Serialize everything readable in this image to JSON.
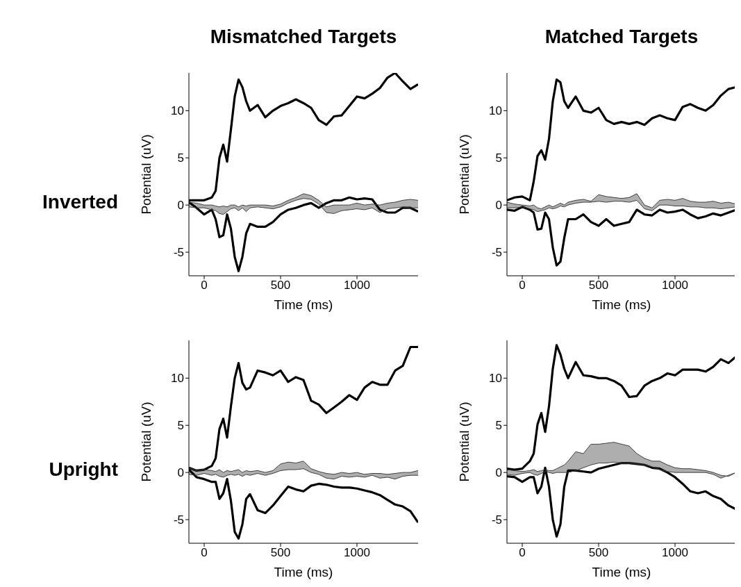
{
  "chart_data": [
    {
      "type": "line",
      "title": "Mismatched Targets",
      "annotations": [
        "Inverted"
      ],
      "xlabel": "Time (ms)",
      "ylabel": "Potential (uV)",
      "xlim": [
        -100,
        1400
      ],
      "xticks": [
        0,
        500,
        1000
      ],
      "ylim": [
        -7.5,
        14
      ],
      "yticks": [
        -5,
        0,
        5,
        10
      ],
      "marker": "none",
      "x": [
        -100,
        -50,
        0,
        50,
        75,
        100,
        125,
        150,
        175,
        200,
        225,
        250,
        275,
        300,
        350,
        400,
        450,
        500,
        550,
        600,
        650,
        700,
        750,
        800,
        850,
        900,
        950,
        1000,
        1050,
        1100,
        1150,
        1200,
        1250,
        1300,
        1350,
        1400
      ],
      "series": [
        {
          "color": "#000000",
          "values": [
            0.5,
            0.5,
            0.5,
            0.8,
            1.5,
            5,
            6.4,
            4.6,
            8,
            11.5,
            13.3,
            12.5,
            11,
            10,
            10.6,
            9.3,
            10,
            10.5,
            10.8,
            11.2,
            10.8,
            10.3,
            9,
            8.5,
            9.4,
            9.5,
            10.5,
            11.5,
            11.3,
            11.8,
            12.4,
            13.5,
            14,
            13.1,
            12.3,
            12.8
          ]
        },
        {
          "color": "#000000",
          "values": [
            0.3,
            -0.3,
            -1,
            -0.5,
            -1.5,
            -3.4,
            -3.2,
            -1,
            -2.5,
            -5.5,
            -7,
            -5.5,
            -3,
            -2,
            -2.3,
            -2.3,
            -1.8,
            -1,
            -0.5,
            -0.3,
            0,
            0.2,
            -0.3,
            0.2,
            0.5,
            0.5,
            0.8,
            0.6,
            0.7,
            0.6,
            -0.5,
            -0.8,
            -0.8,
            -0.3,
            -0.3,
            -0.7
          ]
        },
        {
          "color": "#404040",
          "values": [
            0.3,
            0.2,
            0,
            0,
            -0.1,
            -0.2,
            -0.1,
            -0.2,
            0,
            0,
            -0.2,
            0,
            -0.1,
            0,
            0,
            0,
            -0.1,
            0.1,
            0.5,
            0.8,
            1.2,
            1,
            0.5,
            -0.2,
            0,
            0,
            0,
            0.2,
            0,
            0.1,
            0,
            0.2,
            0.3,
            0.5,
            0.6,
            0.5
          ],
          "upper": [
            0.3,
            0.2,
            0,
            0,
            -0.1,
            -0.2,
            -0.1,
            -0.2,
            0,
            0,
            -0.2,
            0,
            -0.1,
            0,
            0,
            0,
            -0.1,
            0.1,
            0.5,
            0.8,
            1.2,
            1,
            0.5,
            -0.2,
            0,
            0,
            0,
            0.2,
            0,
            0.1,
            0,
            0.2,
            0.3,
            0.5,
            0.6,
            0.5
          ],
          "lower": [
            -0.2,
            -0.3,
            -0.3,
            -0.5,
            -0.6,
            -0.9,
            -1,
            -0.7,
            -0.4,
            -0.3,
            -0.6,
            -0.3,
            -0.7,
            -0.3,
            -0.2,
            -0.3,
            -0.4,
            -0.2,
            0.2,
            0.5,
            0.7,
            0.6,
            0.1,
            -0.8,
            -0.9,
            -0.6,
            -0.5,
            -0.4,
            -0.5,
            -0.3,
            -0.8,
            -0.4,
            -0.3,
            -0.2,
            -0.3,
            -0.3
          ]
        },
        {
          "color": "#404040",
          "values": [
            -0.2,
            -0.3,
            -0.3,
            -0.5,
            -0.6,
            -0.9,
            -1,
            -0.7,
            -0.4,
            -0.3,
            -0.6,
            -0.3,
            -0.7,
            -0.3,
            -0.2,
            -0.3,
            -0.4,
            -0.2,
            0.2,
            0.5,
            0.7,
            0.6,
            0.1,
            -0.8,
            -0.9,
            -0.6,
            -0.5,
            -0.4,
            -0.5,
            -0.3,
            -0.8,
            -0.4,
            -0.3,
            -0.2,
            -0.3,
            -0.3
          ]
        }
      ]
    },
    {
      "type": "line",
      "title": "Matched Targets",
      "xlabel": "Time (ms)",
      "ylabel": "Potential (uV)",
      "xlim": [
        -100,
        1400
      ],
      "xticks": [
        0,
        500,
        1000
      ],
      "ylim": [
        -7.5,
        14
      ],
      "yticks": [
        -5,
        0,
        5,
        10
      ],
      "marker": "none",
      "x": [
        -100,
        -50,
        0,
        50,
        75,
        100,
        125,
        150,
        175,
        200,
        225,
        250,
        275,
        300,
        350,
        400,
        450,
        500,
        550,
        600,
        650,
        700,
        750,
        800,
        850,
        900,
        950,
        1000,
        1050,
        1100,
        1150,
        1200,
        1250,
        1300,
        1350,
        1400
      ],
      "series": [
        {
          "color": "#000000",
          "values": [
            0.5,
            0.8,
            0.9,
            0.5,
            2.5,
            5.2,
            5.8,
            4.8,
            7,
            11,
            13.3,
            13,
            11,
            10.3,
            11.5,
            10,
            9.8,
            10.3,
            9,
            8.6,
            8.8,
            8.6,
            8.8,
            8.5,
            9.2,
            9.5,
            9.2,
            9,
            10.4,
            10.7,
            10.3,
            10,
            10.6,
            11.6,
            12.3,
            12.5
          ]
        },
        {
          "color": "#000000",
          "values": [
            -0.5,
            -0.6,
            -0.2,
            -0.5,
            -0.8,
            -2.6,
            -2.5,
            -0.8,
            -1.5,
            -4.5,
            -6.4,
            -6,
            -3.5,
            -1.5,
            -1.5,
            -1,
            -1.8,
            -2.2,
            -1.5,
            -2.2,
            -2,
            -1.8,
            -0.5,
            -1,
            -1.1,
            -0.5,
            -0.8,
            -0.7,
            -0.5,
            -1,
            -1.4,
            -1.2,
            -0.9,
            -1.1,
            -0.8,
            -0.5
          ]
        },
        {
          "color": "#404040",
          "values": [
            0.3,
            0.1,
            0,
            -0.1,
            0,
            -0.3,
            -0.4,
            -0.2,
            0,
            -0.2,
            0,
            0.2,
            0,
            0.3,
            0.5,
            0.6,
            0.4,
            1.1,
            0.9,
            0.8,
            0.7,
            0.8,
            1.2,
            0,
            -0.3,
            0.5,
            0.6,
            0.5,
            0.7,
            0.4,
            0.3,
            0.3,
            0.4,
            0.2,
            0.3,
            0.1
          ],
          "upper": [
            0.3,
            0.1,
            0,
            -0.1,
            0,
            -0.3,
            -0.4,
            -0.2,
            0,
            -0.2,
            0,
            0.2,
            0,
            0.3,
            0.5,
            0.6,
            0.4,
            1.1,
            0.9,
            0.8,
            0.7,
            0.8,
            1.2,
            0,
            -0.3,
            0.5,
            0.6,
            0.5,
            0.7,
            0.4,
            0.3,
            0.3,
            0.4,
            0.2,
            0.3,
            0.1
          ],
          "lower": [
            -0.3,
            -0.3,
            -0.2,
            -0.4,
            -0.5,
            -0.7,
            -0.6,
            -0.5,
            -0.3,
            -0.4,
            -0.3,
            -0.1,
            -0.2,
            0,
            0.2,
            0.3,
            0.3,
            0.4,
            0.3,
            0.4,
            0.4,
            0.3,
            0.5,
            -0.4,
            -0.6,
            0,
            0,
            -0.1,
            -0.1,
            -0.2,
            -0.2,
            -0.3,
            -0.3,
            -0.4,
            -0.3,
            -0.2
          ]
        },
        {
          "color": "#404040",
          "values": [
            -0.3,
            -0.3,
            -0.2,
            -0.4,
            -0.5,
            -0.7,
            -0.6,
            -0.5,
            -0.3,
            -0.4,
            -0.3,
            -0.1,
            -0.2,
            0,
            0.2,
            0.3,
            0.3,
            0.4,
            0.3,
            0.4,
            0.4,
            0.3,
            0.5,
            -0.4,
            -0.6,
            0,
            0,
            -0.1,
            -0.1,
            -0.2,
            -0.2,
            -0.3,
            -0.3,
            -0.4,
            -0.3,
            -0.2
          ]
        }
      ]
    },
    {
      "type": "line",
      "annotations": [
        "Upright"
      ],
      "xlabel": "Time (ms)",
      "ylabel": "Potential (uV)",
      "xlim": [
        -100,
        1400
      ],
      "xticks": [
        0,
        500,
        1000
      ],
      "ylim": [
        -7.5,
        14
      ],
      "yticks": [
        -5,
        0,
        5,
        10
      ],
      "marker": "none",
      "x": [
        -100,
        -50,
        0,
        50,
        75,
        100,
        125,
        150,
        175,
        200,
        225,
        250,
        275,
        300,
        350,
        400,
        450,
        500,
        550,
        600,
        650,
        700,
        750,
        800,
        850,
        900,
        950,
        1000,
        1050,
        1100,
        1150,
        1200,
        1250,
        1300,
        1350,
        1400
      ],
      "series": [
        {
          "color": "#000000",
          "values": [
            0.5,
            0.2,
            0.3,
            0.7,
            1.5,
            4.6,
            5.7,
            3.7,
            7,
            10,
            11.6,
            9.5,
            8.8,
            9,
            10.8,
            10.6,
            10.3,
            10.8,
            9.6,
            10.1,
            9.8,
            7.6,
            7.2,
            6.3,
            6.9,
            7.5,
            8.2,
            7.7,
            9,
            9.6,
            9.3,
            9.3,
            10.8,
            11.3,
            13.3,
            13.3
          ]
        },
        {
          "color": "#000000",
          "values": [
            0.3,
            -0.5,
            -0.7,
            -1,
            -1,
            -2.8,
            -2.2,
            -0.7,
            -3,
            -6.3,
            -7,
            -5.5,
            -2.8,
            -2.3,
            -4,
            -4.3,
            -3.5,
            -2.5,
            -1.5,
            -1.8,
            -2,
            -1.4,
            -1.2,
            -1.3,
            -1.5,
            -1.6,
            -1.6,
            -1.7,
            -1.9,
            -2.1,
            -2.4,
            -2.9,
            -3.4,
            -3.6,
            -4.1,
            -5.3
          ]
        },
        {
          "color": "#404040",
          "values": [
            0.5,
            0.2,
            0.3,
            0.2,
            0.1,
            0.3,
            0,
            0.2,
            0.1,
            0.2,
            0.3,
            0,
            0.2,
            0.1,
            0.2,
            0,
            0.2,
            0.9,
            1.1,
            1,
            1.2,
            0.4,
            0.1,
            -0.1,
            -0.2,
            0,
            -0.1,
            0,
            -0.2,
            -0.1,
            -0.1,
            -0.2,
            -0.1,
            0,
            0,
            0.2
          ],
          "upper": [
            0.5,
            0.2,
            0.3,
            0.2,
            0.1,
            0.3,
            0,
            0.2,
            0.1,
            0.2,
            0.3,
            0,
            0.2,
            0.1,
            0.2,
            0,
            0.2,
            0.9,
            1.1,
            1,
            1.2,
            0.4,
            0.1,
            -0.1,
            -0.2,
            0,
            -0.1,
            0,
            -0.2,
            -0.1,
            -0.1,
            -0.2,
            -0.1,
            0,
            0,
            0.2
          ],
          "lower": [
            -0.2,
            -0.3,
            -0.1,
            -0.3,
            -0.2,
            -0.4,
            -0.5,
            -0.3,
            -0.2,
            -0.3,
            -0.2,
            -0.4,
            -0.2,
            -0.3,
            -0.1,
            -0.3,
            -0.1,
            0.2,
            0.3,
            0.3,
            0.4,
            0,
            -0.2,
            -0.6,
            -0.7,
            -0.4,
            -0.5,
            -0.4,
            -0.5,
            -0.3,
            -0.6,
            -0.5,
            -0.7,
            -0.4,
            -0.3,
            -0.3
          ]
        },
        {
          "color": "#404040",
          "values": [
            -0.2,
            -0.3,
            -0.1,
            -0.3,
            -0.2,
            -0.4,
            -0.5,
            -0.3,
            -0.2,
            -0.3,
            -0.2,
            -0.4,
            -0.2,
            -0.3,
            -0.1,
            -0.3,
            -0.1,
            0.2,
            0.3,
            0.3,
            0.4,
            0,
            -0.2,
            -0.6,
            -0.7,
            -0.4,
            -0.5,
            -0.4,
            -0.5,
            -0.3,
            -0.6,
            -0.5,
            -0.7,
            -0.4,
            -0.3,
            -0.3
          ]
        }
      ]
    },
    {
      "type": "line",
      "xlabel": "Time (ms)",
      "ylabel": "Potential (uV)",
      "xlim": [
        -100,
        1400
      ],
      "xticks": [
        0,
        500,
        1000
      ],
      "ylim": [
        -7.5,
        14
      ],
      "yticks": [
        -5,
        0,
        5,
        10
      ],
      "marker": "none",
      "x": [
        -100,
        -50,
        0,
        50,
        75,
        100,
        125,
        150,
        175,
        200,
        225,
        250,
        275,
        300,
        350,
        400,
        450,
        500,
        550,
        600,
        650,
        700,
        750,
        800,
        850,
        900,
        950,
        1000,
        1050,
        1100,
        1150,
        1200,
        1250,
        1300,
        1350,
        1400
      ],
      "series": [
        {
          "color": "#000000",
          "values": [
            0.4,
            0.3,
            0.4,
            1.2,
            2,
            5.1,
            6.3,
            4.3,
            7,
            11,
            13.5,
            12.5,
            11,
            10,
            11.7,
            10.3,
            10.2,
            10,
            10,
            9.7,
            9.2,
            8,
            8.1,
            9.2,
            9.7,
            10,
            10.5,
            10.3,
            10.9,
            10.9,
            10.9,
            10.7,
            11.2,
            12,
            11.6,
            12.3
          ]
        },
        {
          "color": "#000000",
          "values": [
            -0.4,
            -0.5,
            -1,
            -0.5,
            -0.5,
            -2.2,
            -1.5,
            0.5,
            -1.5,
            -5,
            -6.8,
            -5.5,
            -1.5,
            0.2,
            0.2,
            0.1,
            0,
            0.4,
            0.6,
            0.8,
            1,
            1,
            0.9,
            0.8,
            0.5,
            0.4,
            0,
            -0.5,
            -1.2,
            -2,
            -2.2,
            -2,
            -2.5,
            -2.8,
            -3.5,
            -3.9
          ]
        },
        {
          "color": "#404040",
          "values": [
            0.3,
            0.2,
            0.1,
            0.2,
            0.3,
            0.1,
            0.2,
            0.3,
            0.2,
            0.2,
            0.4,
            0.6,
            0.8,
            1.2,
            2.2,
            2,
            3,
            3,
            3.1,
            3.2,
            3,
            2.8,
            2,
            1.5,
            1.2,
            1.2,
            0.8,
            0.5,
            0.4,
            0.4,
            0.3,
            0.2,
            0,
            -0.3,
            -0.4,
            0
          ],
          "upper": [
            0.3,
            0.2,
            0.1,
            0.2,
            0.3,
            0.1,
            0.2,
            0.3,
            0.2,
            0.2,
            0.4,
            0.6,
            0.8,
            1.2,
            2.2,
            2,
            3,
            3,
            3.1,
            3.2,
            3,
            2.8,
            2,
            1.5,
            1.2,
            1.2,
            0.8,
            0.5,
            0.4,
            0.4,
            0.3,
            0.2,
            0,
            -0.3,
            -0.4,
            0
          ],
          "lower": [
            -0.2,
            -0.3,
            -0.1,
            0,
            -0.2,
            -0.3,
            -0.1,
            0.1,
            0,
            -0.1,
            0,
            0,
            0,
            0,
            0.2,
            0.5,
            0.8,
            1,
            1,
            1.1,
            1,
            1,
            0.9,
            0.8,
            0.6,
            0.3,
            0.1,
            0,
            0,
            0,
            0,
            0,
            -0.2,
            -0.6,
            -0.3,
            0
          ]
        },
        {
          "color": "#404040",
          "values": [
            -0.2,
            -0.3,
            -0.1,
            0,
            -0.2,
            -0.3,
            -0.1,
            0.1,
            0,
            -0.1,
            0,
            0,
            0,
            0,
            0.2,
            0.5,
            0.8,
            1,
            1,
            1.1,
            1,
            1,
            0.9,
            0.8,
            0.6,
            0.3,
            0.1,
            0,
            0,
            0,
            0,
            0,
            -0.2,
            -0.6,
            -0.3,
            0
          ]
        }
      ]
    }
  ]
}
